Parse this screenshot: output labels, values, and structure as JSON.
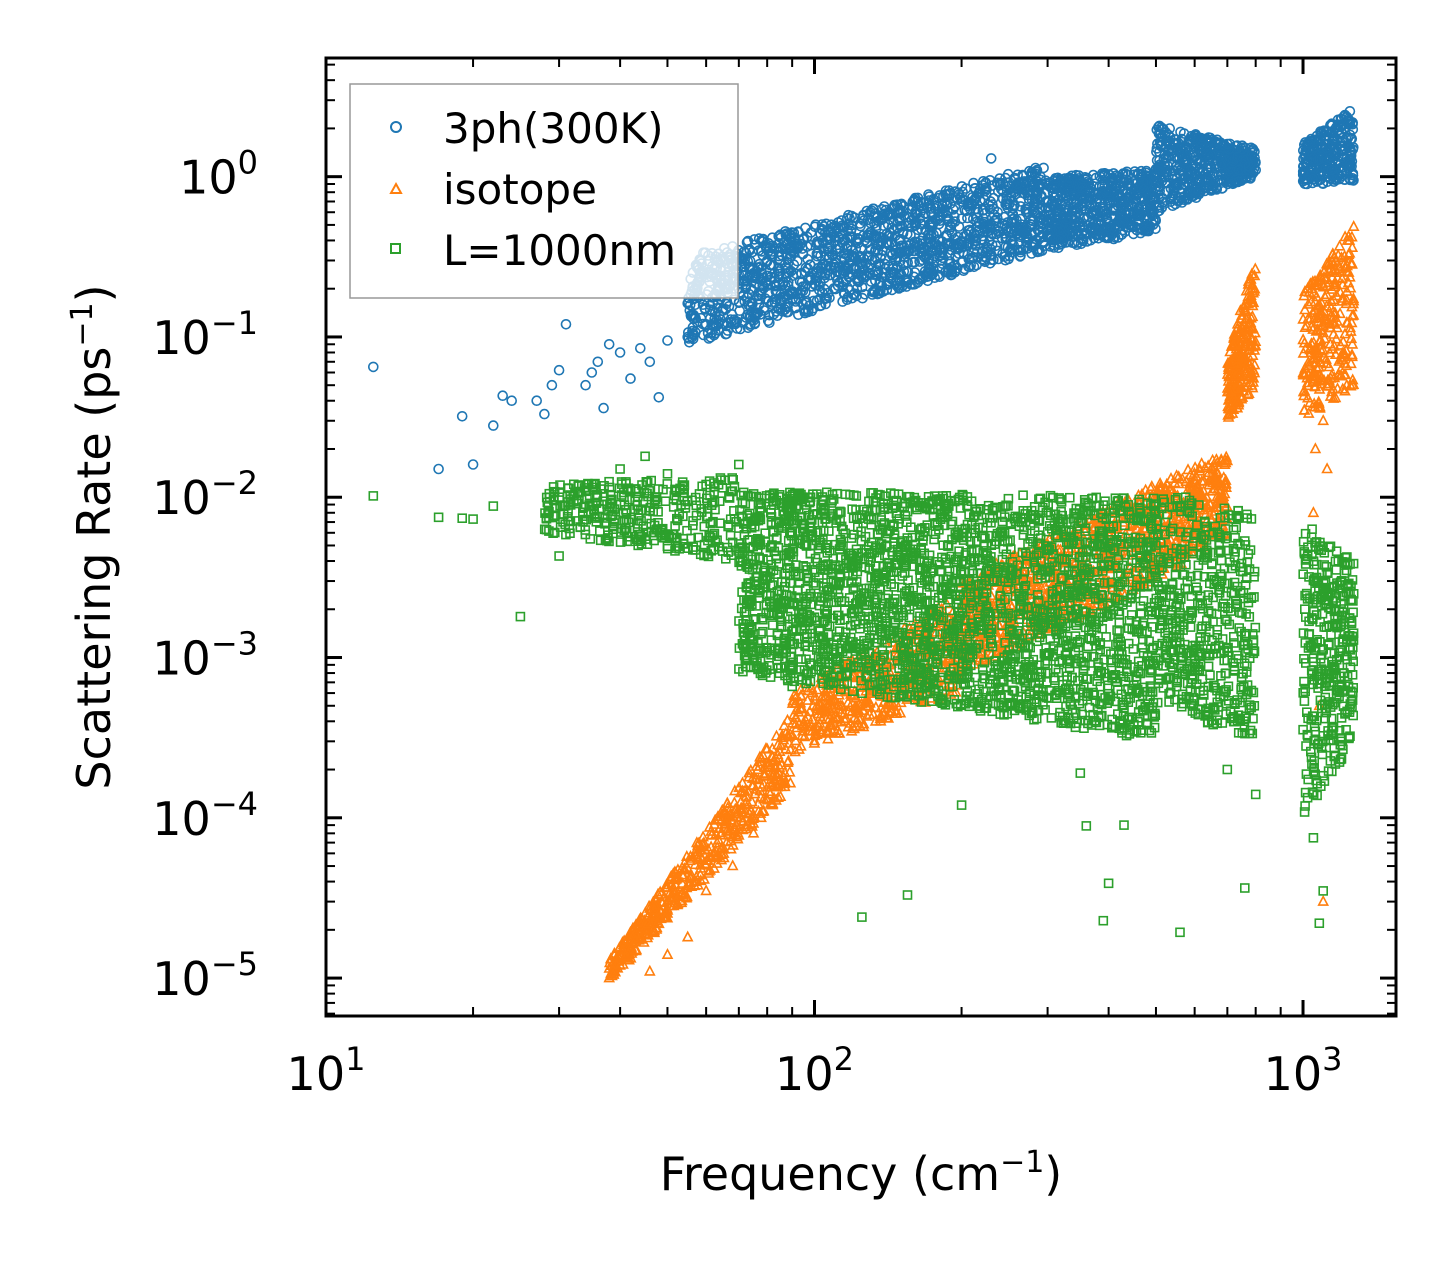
{
  "chart_data": {
    "type": "scatter",
    "xscale": "log",
    "yscale": "log",
    "xlim": [
      10,
      1550
    ],
    "ylim": [
      5.8e-06,
      5.5
    ],
    "xlabel": "Frequency (cm",
    "xlabel_sup": "−1",
    "xlabel_tail": ")",
    "ylabel": "Scattering Rate (ps",
    "ylabel_sup": "−1",
    "ylabel_tail": ")",
    "x_ticks": [
      {
        "value": 10,
        "base": "10",
        "exp": "1"
      },
      {
        "value": 100,
        "base": "10",
        "exp": "2"
      },
      {
        "value": 1000,
        "base": "10",
        "exp": "3"
      }
    ],
    "y_ticks": [
      {
        "value": 1,
        "base": "10",
        "exp": "0"
      },
      {
        "value": 0.1,
        "base": "10",
        "exp": "−1"
      },
      {
        "value": 0.01,
        "base": "10",
        "exp": "−2"
      },
      {
        "value": 0.001,
        "base": "10",
        "exp": "−3"
      },
      {
        "value": 0.0001,
        "base": "10",
        "exp": "−4"
      },
      {
        "value": 1e-05,
        "base": "10",
        "exp": "−5"
      }
    ],
    "legend_position": "top-left",
    "series": [
      {
        "name": "3ph(300K)",
        "marker": "circle",
        "color": "#1f77b4",
        "points": [
          [
            12.5,
            0.065
          ],
          [
            17,
            0.015
          ],
          [
            19,
            0.032
          ],
          [
            20,
            0.016
          ],
          [
            22,
            0.028
          ],
          [
            23,
            0.043
          ],
          [
            24,
            0.04
          ],
          [
            27,
            0.04
          ],
          [
            28,
            0.033
          ],
          [
            29,
            0.05
          ],
          [
            30,
            0.062
          ],
          [
            31,
            0.12
          ],
          [
            34,
            0.05
          ],
          [
            35,
            0.06
          ],
          [
            36,
            0.07
          ],
          [
            37,
            0.036
          ],
          [
            38,
            0.09
          ],
          [
            40,
            0.08
          ],
          [
            42,
            0.055
          ],
          [
            44,
            0.085
          ],
          [
            46,
            0.07
          ],
          [
            48,
            0.042
          ],
          [
            50,
            0.095
          ],
          [
            55,
            0.1
          ],
          [
            60,
            0.12
          ],
          [
            65,
            0.15
          ],
          [
            70,
            0.2
          ],
          [
            75,
            0.25
          ],
          [
            80,
            0.3
          ],
          [
            90,
            0.35
          ],
          [
            110,
            0.4
          ],
          [
            130,
            0.45
          ],
          [
            160,
            0.55
          ],
          [
            200,
            0.7
          ],
          [
            230,
            1.3
          ],
          [
            260,
            0.9
          ],
          [
            300,
            0.7
          ],
          [
            350,
            0.75
          ],
          [
            400,
            0.8
          ],
          [
            450,
            0.6
          ],
          [
            500,
            1.0
          ],
          [
            550,
            1.7
          ],
          [
            600,
            1.8
          ],
          [
            700,
            1.6
          ],
          [
            800,
            1.1
          ],
          [
            1050,
            1.3
          ],
          [
            1150,
            1.6
          ],
          [
            1200,
            2.3
          ],
          [
            1250,
            1.2
          ]
        ],
        "bands": [
          {
            "x_from": 55,
            "x_to": 300,
            "y_low_from": 0.09,
            "y_low_to": 0.35,
            "y_high_from": 0.32,
            "y_high_to": 1.2,
            "count": 1500
          },
          {
            "x_from": 300,
            "x_to": 500,
            "y_low_from": 0.35,
            "y_low_to": 0.45,
            "y_high_from": 1.0,
            "y_high_to": 1.1,
            "count": 600
          },
          {
            "x_from": 500,
            "x_to": 800,
            "y_low_from": 0.6,
            "y_low_to": 1.0,
            "y_high_from": 2.1,
            "y_high_to": 1.5,
            "count": 500
          },
          {
            "x_from": 1000,
            "x_to": 1270,
            "y_low_from": 0.9,
            "y_low_to": 0.9,
            "y_high_from": 1.6,
            "y_high_to": 2.7,
            "count": 280
          }
        ]
      },
      {
        "name": "isotope",
        "marker": "triangle",
        "color": "#ff7f0e",
        "points": [
          [
            38,
            1e-05
          ],
          [
            40,
            1.2e-05
          ],
          [
            43,
            1.5e-05
          ],
          [
            46,
            1.1e-05
          ],
          [
            50,
            1.4e-05
          ],
          [
            55,
            1.8e-05
          ],
          [
            60,
            3.5e-05
          ],
          [
            68,
            5e-05
          ],
          [
            75,
            8e-05
          ],
          [
            1100,
            0.03
          ],
          [
            1060,
            0.02
          ],
          [
            1120,
            0.015
          ],
          [
            1050,
            0.008
          ],
          [
            1080,
            0.0005
          ],
          [
            1100,
            3e-05
          ]
        ],
        "bands": [
          {
            "x_from": 38,
            "x_to": 90,
            "y_low_from": 9.5e-06,
            "y_low_to": 0.00016,
            "y_high_from": 1.3e-05,
            "y_high_to": 0.00045,
            "count": 500
          },
          {
            "x_from": 90,
            "x_to": 200,
            "y_low_from": 0.00025,
            "y_low_to": 0.0006,
            "y_high_from": 0.0006,
            "y_high_to": 0.0025,
            "count": 500
          },
          {
            "x_from": 200,
            "x_to": 500,
            "y_low_from": 0.0008,
            "y_low_to": 0.003,
            "y_high_from": 0.003,
            "y_high_to": 0.012,
            "count": 700
          },
          {
            "x_from": 500,
            "x_to": 700,
            "y_low_from": 0.003,
            "y_low_to": 0.006,
            "y_high_from": 0.012,
            "y_high_to": 0.02,
            "count": 300
          },
          {
            "x_from": 700,
            "x_to": 800,
            "y_low_from": 0.03,
            "y_low_to": 0.05,
            "y_high_from": 0.07,
            "y_high_to": 0.35,
            "count": 250
          },
          {
            "x_from": 1000,
            "x_to": 1270,
            "y_low_from": 0.03,
            "y_low_to": 0.05,
            "y_high_from": 0.2,
            "y_high_to": 0.5,
            "count": 280
          }
        ]
      },
      {
        "name": "L=1000nm",
        "marker": "square",
        "color": "#2ca02c",
        "points": [
          [
            12.5,
            0.0102
          ],
          [
            17,
            0.0075
          ],
          [
            19,
            0.0074
          ],
          [
            20,
            0.0073
          ],
          [
            22,
            0.0088
          ],
          [
            25,
            0.0018
          ],
          [
            30,
            0.0043
          ],
          [
            35,
            0.012
          ],
          [
            40,
            0.015
          ],
          [
            45,
            0.018
          ],
          [
            50,
            0.014
          ],
          [
            60,
            0.012
          ],
          [
            70,
            0.016
          ],
          [
            80,
            0.0011
          ],
          [
            90,
            0.00066
          ],
          [
            125,
            2.4e-05
          ],
          [
            155,
            3.3e-05
          ],
          [
            200,
            0.00012
          ],
          [
            300,
            0.0008
          ],
          [
            350,
            0.00019
          ],
          [
            360,
            8.9e-05
          ],
          [
            390,
            2.28e-05
          ],
          [
            400,
            3.9e-05
          ],
          [
            430,
            9e-05
          ],
          [
            560,
            1.93e-05
          ],
          [
            700,
            0.0002
          ],
          [
            760,
            3.65e-05
          ],
          [
            800,
            0.00014
          ],
          [
            1050,
            7.5e-05
          ],
          [
            1080,
            2.2e-05
          ],
          [
            1100,
            3.5e-05
          ],
          [
            1200,
            0.0003
          ]
        ],
        "bands": [
          {
            "x_from": 28,
            "x_to": 70,
            "y_low_from": 0.006,
            "y_low_to": 0.004,
            "y_high_from": 0.012,
            "y_high_to": 0.014,
            "count": 350
          },
          {
            "x_from": 70,
            "x_to": 500,
            "y_low_from": 0.0008,
            "y_low_to": 0.0003,
            "y_high_from": 0.011,
            "y_high_to": 0.01,
            "count": 2600
          },
          {
            "x_from": 500,
            "x_to": 800,
            "y_low_from": 0.0005,
            "y_low_to": 0.0003,
            "y_high_from": 0.011,
            "y_high_to": 0.008,
            "count": 500
          },
          {
            "x_from": 1000,
            "x_to": 1270,
            "y_low_from": 0.0001,
            "y_low_to": 0.0003,
            "y_high_from": 0.007,
            "y_high_to": 0.004,
            "count": 350
          }
        ]
      }
    ]
  }
}
